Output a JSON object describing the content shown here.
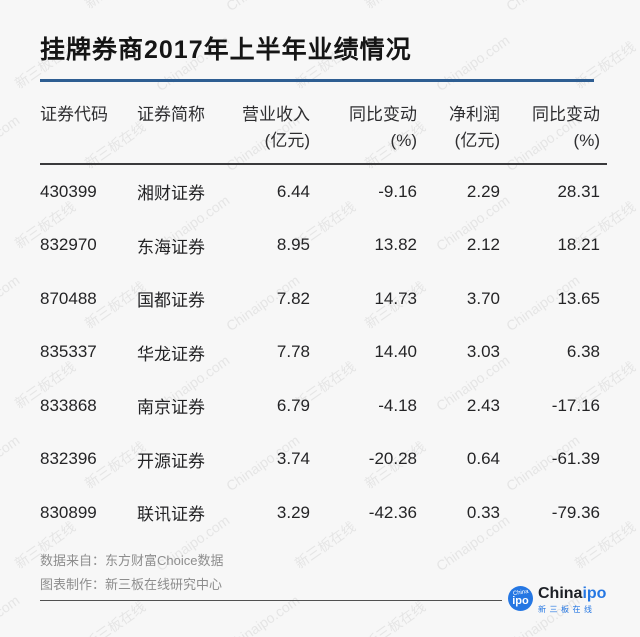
{
  "title": "挂牌券商2017年上半年业绩情况",
  "chart_data": {
    "type": "table",
    "title": "挂牌券商2017年上半年业绩情况",
    "columns": [
      {
        "label": "证券代码",
        "unit": ""
      },
      {
        "label": "证券简称",
        "unit": ""
      },
      {
        "label": "营业收入",
        "unit": "(亿元)"
      },
      {
        "label": "同比变动",
        "unit": "(%)"
      },
      {
        "label": "净利润",
        "unit": "(亿元)"
      },
      {
        "label": "同比变动",
        "unit": "(%)"
      }
    ],
    "rows": [
      {
        "code": "430399",
        "name": "湘财证券",
        "revenue": "6.44",
        "revenue_yoy": "-9.16",
        "profit": "2.29",
        "profit_yoy": "28.31"
      },
      {
        "code": "832970",
        "name": "东海证券",
        "revenue": "8.95",
        "revenue_yoy": "13.82",
        "profit": "2.12",
        "profit_yoy": "18.21"
      },
      {
        "code": "870488",
        "name": "国都证券",
        "revenue": "7.82",
        "revenue_yoy": "14.73",
        "profit": "3.70",
        "profit_yoy": "13.65"
      },
      {
        "code": "835337",
        "name": "华龙证券",
        "revenue": "7.78",
        "revenue_yoy": "14.40",
        "profit": "3.03",
        "profit_yoy": "6.38"
      },
      {
        "code": "833868",
        "name": "南京证券",
        "revenue": "6.79",
        "revenue_yoy": "-4.18",
        "profit": "2.43",
        "profit_yoy": "-17.16"
      },
      {
        "code": "832396",
        "name": "开源证券",
        "revenue": "3.74",
        "revenue_yoy": "-20.28",
        "profit": "0.64",
        "profit_yoy": "-61.39"
      },
      {
        "code": "830899",
        "name": "联讯证券",
        "revenue": "3.29",
        "revenue_yoy": "-42.36",
        "profit": "0.33",
        "profit_yoy": "-79.36"
      }
    ]
  },
  "footer": {
    "source_line": "数据来自：东方财富Choice数据",
    "credit_line": "图表制作：新三板在线研究中心"
  },
  "logo": {
    "badge_top": "China",
    "badge_main": "ipo",
    "wordmark_dark": "China",
    "wordmark_blue": "ipo",
    "tagline": "新三板在线"
  },
  "watermark": {
    "labels": [
      "Chinaipo.com",
      "新三板在线"
    ]
  },
  "colors": {
    "background": "#f7f7f7",
    "accent_blue": "#2e5e92",
    "logo_blue": "#2577e3",
    "text_dark": "#242426",
    "text_gray": "#8d8d8d"
  }
}
